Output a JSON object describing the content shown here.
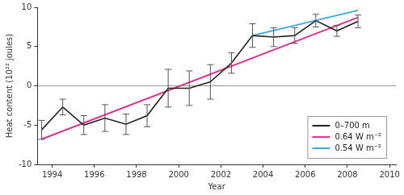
{
  "chart_data": {
    "type": "line",
    "x_label": "Year",
    "y_label": "Heat content (10²² joules)",
    "xlim": [
      1993.3,
      2010.3
    ],
    "xticks": [
      1994,
      1996,
      1998,
      2000,
      2002,
      2004,
      2006,
      2008,
      2010
    ],
    "ylim": [
      -10,
      10
    ],
    "yticks": [
      -10,
      -5,
      0,
      5,
      10
    ],
    "grid": false,
    "legend": "lower right",
    "series": [
      {
        "name": "0–700 m",
        "color": "#222222",
        "x": [
          1993.5,
          1994.5,
          1995.5,
          1996.5,
          1997.5,
          1998.5,
          1999.5,
          2000.5,
          2001.5,
          2002.5,
          2003.5,
          2004.5,
          2005.5,
          2006.5,
          2007.5,
          2008.5
        ],
        "values": [
          -5.6,
          -2.7,
          -5.0,
          -4.1,
          -4.9,
          -3.8,
          -0.3,
          -0.3,
          0.5,
          2.9,
          6.4,
          6.2,
          6.4,
          8.3,
          7.0,
          8.2
        ],
        "errors": [
          1.2,
          1.0,
          1.2,
          1.7,
          1.3,
          1.4,
          2.4,
          2.2,
          2.2,
          1.3,
          1.5,
          1.2,
          1.0,
          0.8,
          0.7,
          0.8
        ]
      },
      {
        "name": "0.64 W m⁻²",
        "color": "#e0338a",
        "x": [
          1993.5,
          2008.5
        ],
        "values": [
          -6.8,
          8.7
        ]
      },
      {
        "name": "0.54 W m⁻²",
        "color": "#3fa9e0",
        "x": [
          2003.5,
          2008.5
        ],
        "values": [
          6.4,
          9.6
        ]
      }
    ]
  }
}
